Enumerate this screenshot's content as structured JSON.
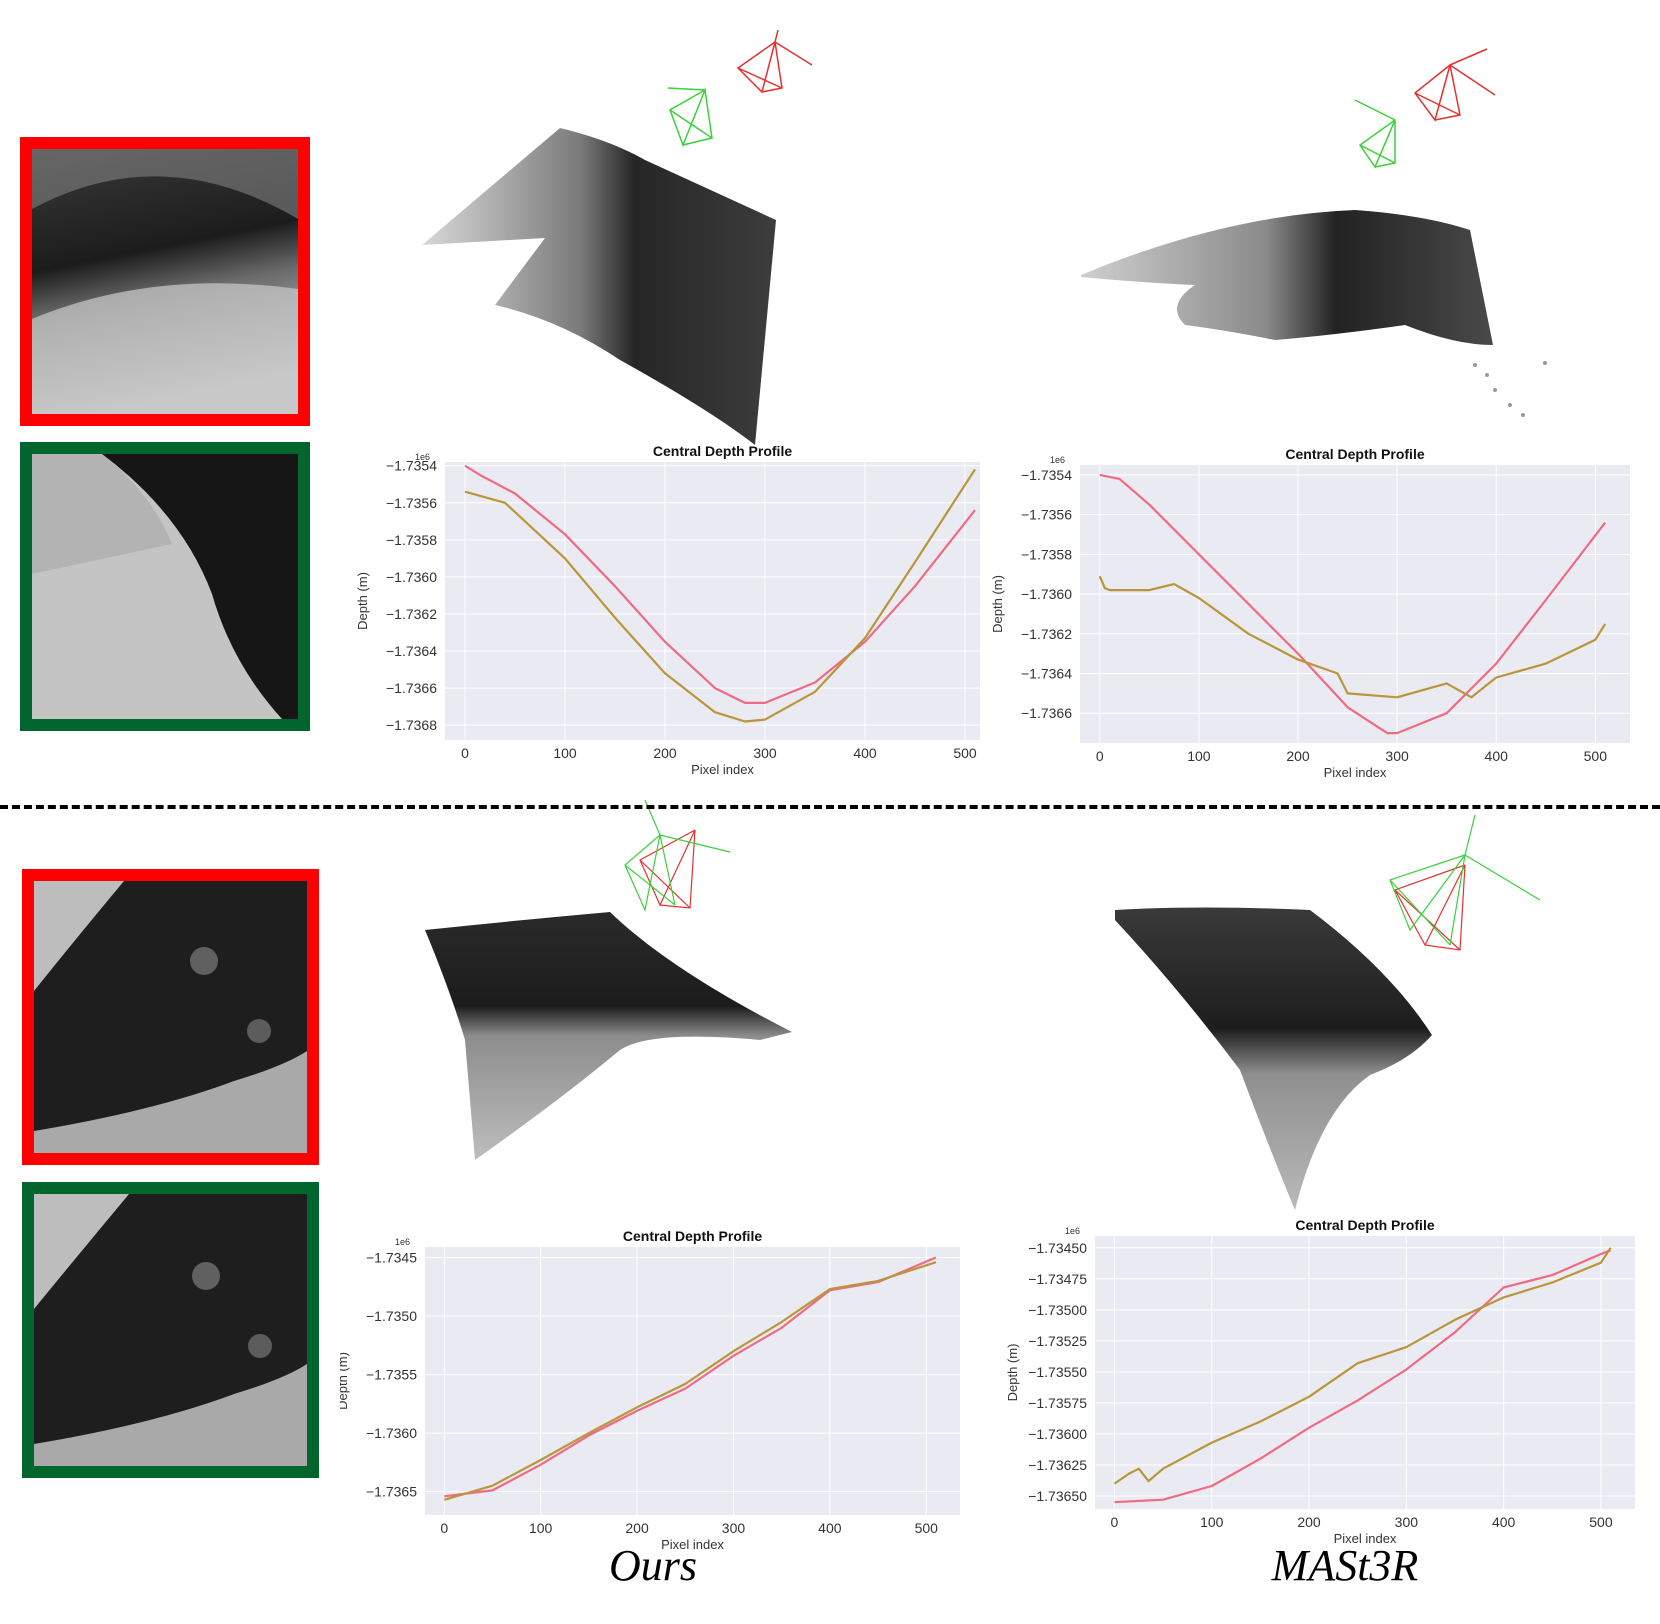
{
  "figure": {
    "captions": {
      "left": "Ours",
      "right": "MASt3R"
    },
    "colors": {
      "frame_red": "#ff0000",
      "frame_green": "#00662e",
      "gt_line": "#ee6b83",
      "pred_line": "#b8963a",
      "plot_bg": "#eaeaf2"
    }
  },
  "chart_data": [
    {
      "type": "line",
      "panel": "top-left",
      "title": "Central Depth Profile",
      "xlabel": "Pixel index",
      "ylabel": "Depth (m)",
      "offset_label": "1e6",
      "xlim": [
        -20,
        535
      ],
      "ylim": [
        -1.73688,
        -1.73538
      ],
      "xticks": [
        0,
        100,
        200,
        300,
        400,
        500
      ],
      "yticks": [
        -1.7354,
        -1.7356,
        -1.7358,
        -1.736,
        -1.7362,
        -1.7364,
        -1.7366,
        -1.7368
      ],
      "yticklabels": [
        "−1.7354",
        "−1.7356",
        "−1.7358",
        "−1.7360",
        "−1.7362",
        "−1.7364",
        "−1.7366",
        "−1.7368"
      ],
      "series": [
        {
          "color": "#ee6b83",
          "x": [
            0,
            15,
            50,
            100,
            150,
            200,
            250,
            280,
            300,
            350,
            400,
            450,
            510
          ],
          "y": [
            -1.7354,
            -1.73545,
            -1.73555,
            -1.73577,
            -1.73605,
            -1.73635,
            -1.7366,
            -1.73668,
            -1.73668,
            -1.73657,
            -1.73635,
            -1.73605,
            -1.73564
          ]
        },
        {
          "color": "#b8963a",
          "x": [
            0,
            40,
            100,
            150,
            200,
            250,
            280,
            300,
            350,
            400,
            450,
            510
          ],
          "y": [
            -1.73554,
            -1.7356,
            -1.7359,
            -1.73622,
            -1.73652,
            -1.73673,
            -1.73678,
            -1.73677,
            -1.73662,
            -1.73633,
            -1.73592,
            -1.73542
          ]
        }
      ]
    },
    {
      "type": "line",
      "panel": "top-right",
      "title": "Central Depth Profile",
      "xlabel": "Pixel index",
      "ylabel": "Depth (m)",
      "offset_label": "1e6",
      "xlim": [
        -20,
        535
      ],
      "ylim": [
        -1.73675,
        -1.73535
      ],
      "xticks": [
        0,
        100,
        200,
        300,
        400,
        500
      ],
      "yticks": [
        -1.7354,
        -1.7356,
        -1.7358,
        -1.736,
        -1.7362,
        -1.7364,
        -1.7366
      ],
      "yticklabels": [
        "−1.7354",
        "−1.7356",
        "−1.7358",
        "−1.7360",
        "−1.7362",
        "−1.7364",
        "−1.7366"
      ],
      "series": [
        {
          "color": "#ee6b83",
          "x": [
            0,
            20,
            50,
            100,
            150,
            200,
            250,
            290,
            300,
            350,
            400,
            450,
            510
          ],
          "y": [
            -1.7354,
            -1.73542,
            -1.73555,
            -1.7358,
            -1.73605,
            -1.7363,
            -1.73657,
            -1.7367,
            -1.7367,
            -1.7366,
            -1.73635,
            -1.73603,
            -1.73564
          ]
        },
        {
          "color": "#b8963a",
          "x": [
            0,
            5,
            10,
            50,
            75,
            100,
            150,
            200,
            240,
            250,
            300,
            350,
            375,
            400,
            450,
            500,
            510
          ],
          "y": [
            -1.73591,
            -1.73597,
            -1.73598,
            -1.73598,
            -1.73595,
            -1.73602,
            -1.7362,
            -1.73633,
            -1.7364,
            -1.7365,
            -1.73652,
            -1.73645,
            -1.73652,
            -1.73642,
            -1.73635,
            -1.73623,
            -1.73615
          ]
        }
      ]
    },
    {
      "type": "line",
      "panel": "bottom-left",
      "title": "Central Depth Profile",
      "xlabel": "Pixel index",
      "ylabel": "Depth (m)",
      "offset_label": "1e6",
      "xlim": [
        -20,
        535
      ],
      "ylim": [
        -1.7367,
        -1.73441
      ],
      "xticks": [
        0,
        100,
        200,
        300,
        400,
        500
      ],
      "yticks": [
        -1.7345,
        -1.735,
        -1.7355,
        -1.736,
        -1.7365
      ],
      "yticklabels": [
        "−1.7345",
        "−1.7350",
        "−1.7355",
        "−1.7360",
        "−1.7365"
      ],
      "series": [
        {
          "color": "#ee6b83",
          "x": [
            0,
            50,
            100,
            150,
            200,
            250,
            300,
            350,
            400,
            450,
            510
          ],
          "y": [
            -1.73654,
            -1.73649,
            -1.73627,
            -1.73602,
            -1.73581,
            -1.73562,
            -1.73534,
            -1.7351,
            -1.73478,
            -1.73471,
            -1.7345
          ]
        },
        {
          "color": "#b8963a",
          "x": [
            0,
            50,
            100,
            150,
            200,
            250,
            300,
            350,
            400,
            450,
            510
          ],
          "y": [
            -1.73657,
            -1.73645,
            -1.73623,
            -1.736,
            -1.73578,
            -1.73558,
            -1.7353,
            -1.73505,
            -1.73477,
            -1.7347,
            -1.73454
          ]
        }
      ]
    },
    {
      "type": "line",
      "panel": "bottom-right",
      "title": "Central Depth Profile",
      "xlabel": "Pixel index",
      "ylabel": "Depth (m)",
      "offset_label": "1e6",
      "xlim": [
        -20,
        535
      ],
      "ylim": [
        -1.736605,
        -1.734405
      ],
      "xticks": [
        0,
        100,
        200,
        300,
        400,
        500
      ],
      "yticks": [
        -1.7345,
        -1.73475,
        -1.735,
        -1.73525,
        -1.7355,
        -1.73575,
        -1.736,
        -1.73625,
        -1.7365
      ],
      "yticklabels": [
        "−1.73450",
        "−1.73475",
        "−1.73500",
        "−1.73525",
        "−1.73550",
        "−1.73575",
        "−1.73600",
        "−1.73625",
        "−1.73650"
      ],
      "series": [
        {
          "color": "#ee6b83",
          "x": [
            0,
            50,
            100,
            150,
            200,
            250,
            300,
            350,
            400,
            450,
            500,
            510
          ],
          "y": [
            -1.73655,
            -1.73653,
            -1.73642,
            -1.7362,
            -1.73595,
            -1.73573,
            -1.73548,
            -1.73518,
            -1.73482,
            -1.73472,
            -1.73455,
            -1.73452
          ]
        },
        {
          "color": "#b8963a",
          "x": [
            0,
            15,
            25,
            35,
            50,
            100,
            150,
            200,
            250,
            300,
            350,
            400,
            450,
            500,
            510
          ],
          "y": [
            -1.7364,
            -1.73632,
            -1.73628,
            -1.73638,
            -1.73628,
            -1.73607,
            -1.7359,
            -1.7357,
            -1.73543,
            -1.7353,
            -1.73508,
            -1.7349,
            -1.73478,
            -1.73462,
            -1.7345
          ]
        }
      ]
    }
  ]
}
